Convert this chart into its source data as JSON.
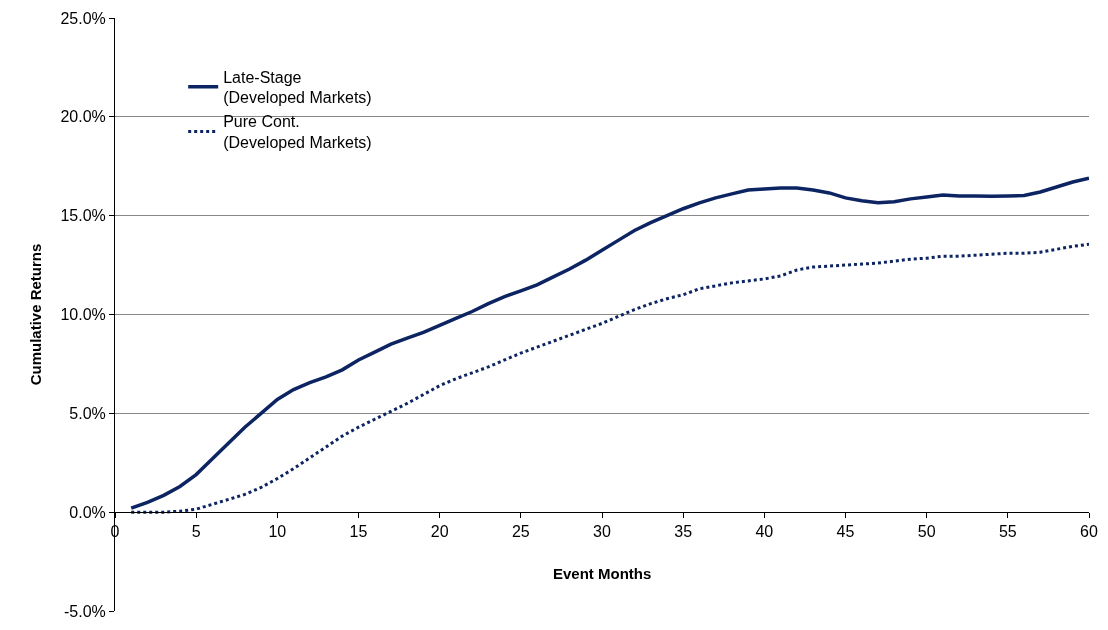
{
  "chart_data": {
    "type": "line",
    "xlabel": "Event Months",
    "ylabel": "Cumulative Returns",
    "x": [
      1,
      2,
      3,
      4,
      5,
      6,
      7,
      8,
      9,
      10,
      11,
      12,
      13,
      14,
      15,
      16,
      17,
      18,
      19,
      20,
      21,
      22,
      23,
      24,
      25,
      26,
      27,
      28,
      29,
      30,
      31,
      32,
      33,
      34,
      35,
      36,
      37,
      38,
      39,
      40,
      41,
      42,
      43,
      44,
      45,
      46,
      47,
      48,
      49,
      50,
      51,
      52,
      53,
      54,
      55,
      56,
      57,
      58,
      59,
      60
    ],
    "series": [
      {
        "name": "Late-Stage\n(Developed Markets)",
        "color": "#0d2462",
        "line_style": "solid",
        "values": [
          0.2,
          0.5,
          0.85,
          1.3,
          1.9,
          2.7,
          3.5,
          4.3,
          5.0,
          5.7,
          6.2,
          6.55,
          6.85,
          7.2,
          7.7,
          8.1,
          8.5,
          8.8,
          9.1,
          9.45,
          9.8,
          10.15,
          10.55,
          10.9,
          11.2,
          11.5,
          11.9,
          12.3,
          12.75,
          13.25,
          13.75,
          14.25,
          14.65,
          15.0,
          15.35,
          15.65,
          15.9,
          16.1,
          16.3,
          16.35,
          16.4,
          16.4,
          16.3,
          16.15,
          15.9,
          15.75,
          15.65,
          15.7,
          15.85,
          15.95,
          16.05,
          16.0,
          16.0,
          15.98,
          16.0,
          16.02,
          16.2,
          16.45,
          16.7,
          16.9
        ]
      },
      {
        "name": "Pure Cont.\n(Developed Markets)",
        "color": "#0d2462",
        "line_style": "dotted",
        "values": [
          0.0,
          0.0,
          0.0,
          0.05,
          0.15,
          0.4,
          0.65,
          0.9,
          1.25,
          1.7,
          2.2,
          2.75,
          3.3,
          3.85,
          4.3,
          4.7,
          5.1,
          5.5,
          5.95,
          6.4,
          6.75,
          7.05,
          7.35,
          7.7,
          8.05,
          8.35,
          8.65,
          8.95,
          9.25,
          9.55,
          9.9,
          10.25,
          10.55,
          10.8,
          11.0,
          11.3,
          11.45,
          11.6,
          11.7,
          11.8,
          11.95,
          12.25,
          12.4,
          12.45,
          12.5,
          12.55,
          12.6,
          12.7,
          12.8,
          12.85,
          12.95,
          12.95,
          13.0,
          13.05,
          13.1,
          13.1,
          13.15,
          13.3,
          13.45,
          13.55
        ]
      }
    ],
    "xlim": [
      0,
      60
    ],
    "xticks": [
      0,
      5,
      10,
      15,
      20,
      25,
      30,
      35,
      40,
      45,
      50,
      55,
      60
    ],
    "ylim": [
      -5,
      25
    ],
    "yticks": [
      {
        "value": -5,
        "label": "-5.0%"
      },
      {
        "value": 0,
        "label": "0.0%"
      },
      {
        "value": 5,
        "label": "5.0%"
      },
      {
        "value": 10,
        "label": "10.0%"
      },
      {
        "value": 15,
        "label": "15.0%"
      },
      {
        "value": 20,
        "label": "20.0%"
      },
      {
        "value": 25,
        "label": "25.0%"
      }
    ],
    "grid": "y",
    "legend": "top left",
    "marker": "none"
  }
}
